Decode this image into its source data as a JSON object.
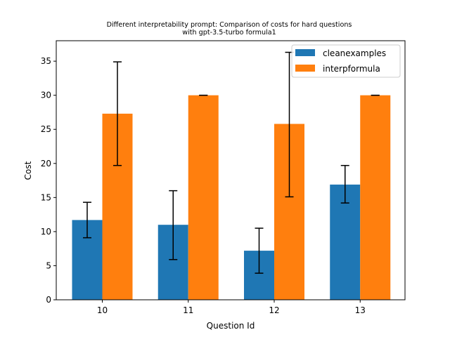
{
  "chart_data": {
    "type": "bar",
    "title_line1": "Different interpretability prompt: Comparison of costs for hard questions",
    "title_line2": "with gpt-3.5-turbo formula1",
    "xlabel": "Question Id",
    "ylabel": "Cost",
    "categories": [
      "10",
      "11",
      "12",
      "13"
    ],
    "ylim": [
      0,
      38
    ],
    "yticks": [
      0,
      5,
      10,
      15,
      20,
      25,
      30,
      35
    ],
    "grid": false,
    "legend_position": "top-right",
    "series": [
      {
        "name": "cleanexamples",
        "color": "#1f77b4",
        "values": [
          11.7,
          11.0,
          7.2,
          16.9
        ],
        "err_low": [
          9.1,
          5.9,
          3.9,
          14.2
        ],
        "err_high": [
          14.3,
          16.0,
          10.5,
          19.7
        ]
      },
      {
        "name": "interpformula",
        "color": "#ff7f0e",
        "values": [
          27.3,
          30.0,
          25.8,
          30.0
        ],
        "err_low": [
          19.7,
          30.0,
          15.1,
          30.0
        ],
        "err_high": [
          34.9,
          30.0,
          36.3,
          30.0
        ]
      }
    ]
  }
}
